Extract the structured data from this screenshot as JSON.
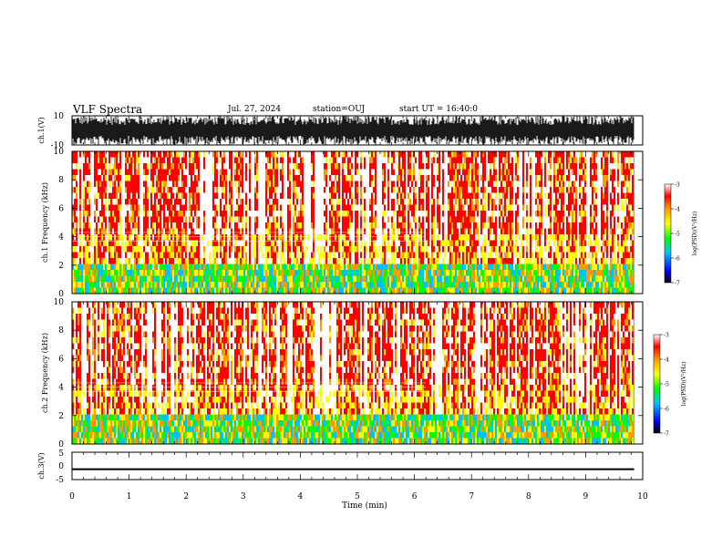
{
  "header": {
    "title": "VLF Spectra",
    "date": "Jul. 27, 2024",
    "station": "station=OUJ",
    "start": "start UT = 16:40:0"
  },
  "chart_data": [
    {
      "type": "line",
      "name": "ch1-waveform",
      "ylabel": "ch.1(V)",
      "ylim": [
        -10,
        10
      ],
      "yticks": [
        "10",
        "-10"
      ],
      "xlim": [
        0,
        10
      ]
    },
    {
      "type": "heatmap",
      "name": "ch1-spectrogram",
      "ylabel": "ch.1 Frequency (kHz)",
      "ylim": [
        0,
        10
      ],
      "yticks": [
        "0",
        "2",
        "4",
        "6",
        "8",
        "10"
      ],
      "xlim": [
        0,
        10
      ],
      "data_end_min": 9.85,
      "colorbar": {
        "label": "log(PSD)(V²/Hz)",
        "ticks": [
          "-3",
          "-4",
          "-5",
          "-6",
          "-7"
        ],
        "range": [
          -7,
          -3
        ]
      }
    },
    {
      "type": "heatmap",
      "name": "ch2-spectrogram",
      "ylabel": "ch.2 Frequency (kHz)",
      "ylim": [
        0,
        10
      ],
      "yticks": [
        "0",
        "2",
        "4",
        "6",
        "8",
        "10"
      ],
      "xlim": [
        0,
        10
      ],
      "data_end_min": 9.85,
      "colorbar": {
        "label": "log(PSD)(V²/Hz)",
        "ticks": [
          "-3",
          "-4",
          "-5",
          "-6",
          "-7"
        ],
        "range": [
          -7,
          -3
        ]
      }
    },
    {
      "type": "line",
      "name": "ch3-waveform",
      "ylabel": "ch.3(V)",
      "ylim": [
        -5,
        5
      ],
      "yticks": [
        "5",
        "0",
        "-5"
      ],
      "level": -1.2,
      "xlim": [
        0,
        10
      ]
    }
  ],
  "xaxis": {
    "label": "Time (min)",
    "ticks": [
      "0",
      "1",
      "2",
      "3",
      "4",
      "5",
      "6",
      "7",
      "8",
      "9",
      "10"
    ],
    "range": [
      0,
      10
    ]
  },
  "colors": {
    "palette": [
      "#000000",
      "#0000ff",
      "#00c0ff",
      "#00ff00",
      "#ffff00",
      "#ff9900",
      "#ff0000",
      "#ffffff"
    ]
  }
}
